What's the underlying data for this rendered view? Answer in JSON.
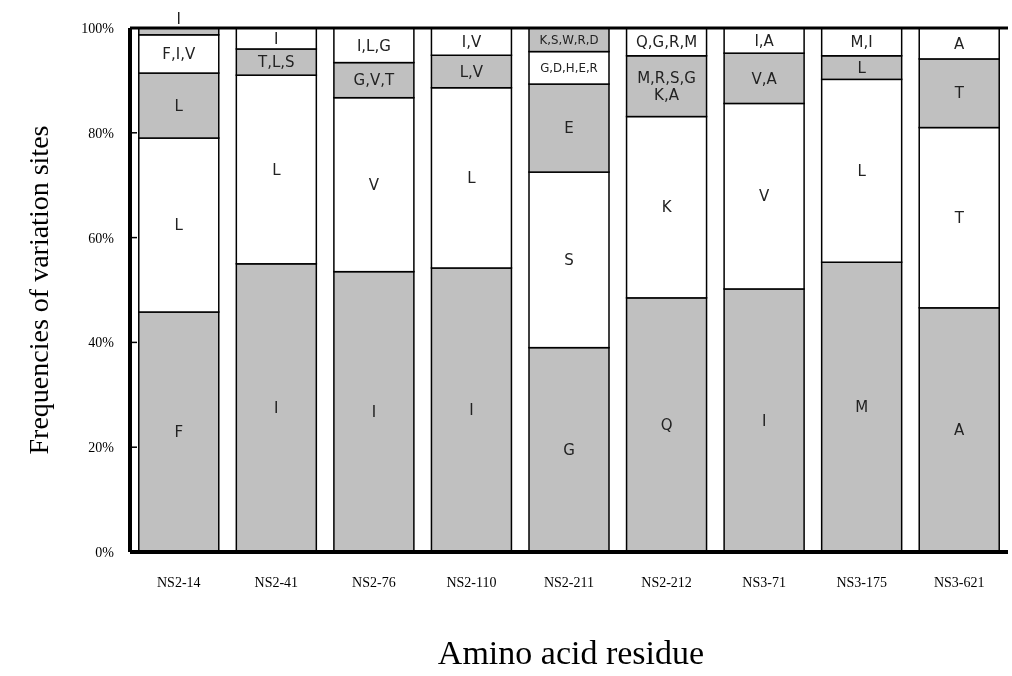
{
  "chart_data": {
    "type": "bar",
    "stacked": true,
    "xlabel": "Amino acid residue",
    "ylabel": "Frequencies of variation sites",
    "categories": [
      "NS2-14",
      "NS2-41",
      "NS2-76",
      "NS2-110",
      "NS2-211",
      "NS2-212",
      "NS3-71",
      "NS3-175",
      "NS3-621"
    ],
    "series": [
      {
        "color": "#c0c0c0",
        "values": [
          45.8,
          55,
          53.5,
          54.2,
          39,
          48.5,
          50.2,
          55.3,
          46.6
        ],
        "value_labels": [
          "F",
          "I",
          "I",
          "I",
          "G",
          "Q",
          "I",
          "M",
          "A"
        ]
      },
      {
        "color": "#ffffff",
        "values": [
          33.2,
          36,
          33.2,
          34.4,
          33.5,
          34.6,
          35.4,
          34.9,
          34.4
        ],
        "value_labels": [
          "L",
          "L",
          "V",
          "L",
          "S",
          "K",
          "V",
          "L",
          "T"
        ]
      },
      {
        "color": "#c0c0c0",
        "values": [
          12.4,
          5,
          6.7,
          6.2,
          16.8,
          11.6,
          9.6,
          4.5,
          13.1
        ],
        "value_labels": [
          "L",
          "T,L,S",
          "G,V,T",
          "L,V",
          "E",
          "M,R,S,G K,A",
          "V,A",
          "L",
          "T"
        ]
      },
      {
        "color": "#ffffff",
        "values": [
          7.3,
          4,
          6.6,
          5.2,
          6.2,
          5.3,
          4.8,
          5.3,
          5.9
        ],
        "value_labels": [
          "F,I,V",
          "I",
          "I,L,G",
          "I,V",
          "G,D,H,E,R",
          "Q,G,R,M",
          "I,A",
          "M,I",
          "A"
        ]
      },
      {
        "color": "#c0c0c0",
        "values": [
          1.3,
          null,
          null,
          null,
          4.5,
          null,
          null,
          null,
          null
        ],
        "value_labels": [
          "I",
          null,
          null,
          null,
          "K,S,W,R,D",
          null,
          null,
          null,
          null
        ]
      }
    ],
    "ylim": [
      0,
      100
    ],
    "yticks": [
      {
        "value": 0,
        "label": "0%"
      },
      {
        "value": 20,
        "label": "20%"
      },
      {
        "value": 40,
        "label": "40%"
      },
      {
        "value": 60,
        "label": "60%"
      },
      {
        "value": 80,
        "label": "80%"
      },
      {
        "value": 100,
        "label": "100%"
      }
    ],
    "grid": false
  }
}
